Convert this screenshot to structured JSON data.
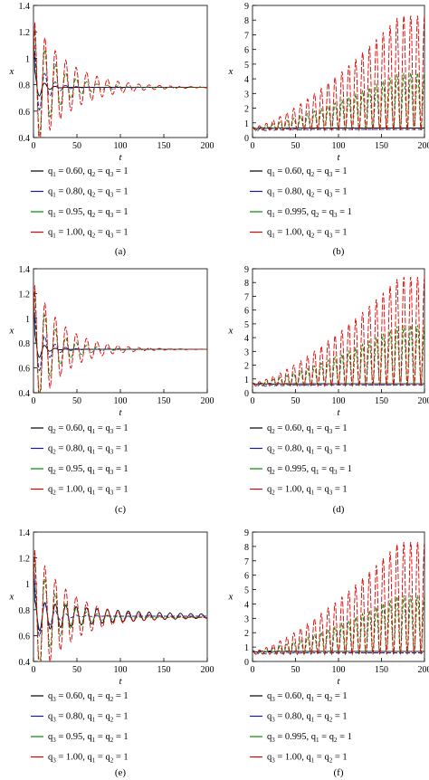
{
  "figure": {
    "panels": [
      {
        "label": "(a)",
        "legend": [
          {
            "text": [
              "q",
              "1",
              " = 0.60, q",
              "2",
              " = q",
              "3",
              " = 1"
            ]
          },
          {
            "text": [
              "q",
              "1",
              " = 0.80, q",
              "2",
              " = q",
              "3",
              " = 1"
            ]
          },
          {
            "text": [
              "q",
              "1",
              " = 0.95, q",
              "2",
              " = q",
              "3",
              " = 1"
            ]
          },
          {
            "text": [
              "q",
              "1",
              " = 1.00, q",
              "2",
              " = q",
              "3",
              " = 1"
            ]
          }
        ]
      },
      {
        "label": "(b)",
        "legend": [
          {
            "text": [
              "q",
              "1",
              " = 0.60, q",
              "2",
              " = q",
              "3",
              " = 1"
            ]
          },
          {
            "text": [
              "q",
              "1",
              " = 0.80, q",
              "2",
              " = q",
              "3",
              " = 1"
            ]
          },
          {
            "text": [
              "q",
              "1",
              " = 0.995, q",
              "2",
              " = q",
              "3",
              " = 1"
            ]
          },
          {
            "text": [
              "q",
              "1",
              " = 1.00, q",
              "2",
              " = q",
              "3",
              " = 1"
            ]
          }
        ]
      },
      {
        "label": "(c)",
        "legend": [
          {
            "text": [
              "q",
              "2",
              " = 0.60, q",
              "1",
              " = q",
              "3",
              " = 1"
            ]
          },
          {
            "text": [
              "q",
              "2",
              " = 0.80, q",
              "1",
              " = q",
              "3",
              " = 1"
            ]
          },
          {
            "text": [
              "q",
              "2",
              " = 0.95, q",
              "1",
              " = q",
              "3",
              " = 1"
            ]
          },
          {
            "text": [
              "q",
              "2",
              " = 1.00, q",
              "1",
              " = q",
              "3",
              " = 1"
            ]
          }
        ]
      },
      {
        "label": "(d)",
        "legend": [
          {
            "text": [
              "q",
              "2",
              " = 0.60, q",
              "1",
              " = q",
              "3",
              " = 1"
            ]
          },
          {
            "text": [
              "q",
              "2",
              " = 0.80, q",
              "1",
              " = q",
              "3",
              " = 1"
            ]
          },
          {
            "text": [
              "q",
              "2",
              " = 0.995, q",
              "1",
              " = q",
              "3",
              " = 1"
            ]
          },
          {
            "text": [
              "q",
              "2",
              " = 1.00, q",
              "1",
              " = q",
              "3",
              " = 1"
            ]
          }
        ]
      },
      {
        "label": "(e)",
        "legend": [
          {
            "text": [
              "q",
              "3",
              " = 0.60, q",
              "1",
              " = q",
              "2",
              " = 1"
            ]
          },
          {
            "text": [
              "q",
              "3",
              " = 0.80, q",
              "1",
              " = q",
              "2",
              " = 1"
            ]
          },
          {
            "text": [
              "q",
              "3",
              " = 0.95, q",
              "1",
              " = q",
              "2",
              " = 1"
            ]
          },
          {
            "text": [
              "q",
              "3",
              " = 1.00, q",
              "1",
              " = q",
              "2",
              " = 1"
            ]
          }
        ]
      },
      {
        "label": "(f)",
        "legend": [
          {
            "text": [
              "q",
              "3",
              " = 0.60, q",
              "1",
              " = q",
              "2",
              " = 1"
            ]
          },
          {
            "text": [
              "q",
              "3",
              " = 0.80, q",
              "1",
              " = q",
              "2",
              " = 1"
            ]
          },
          {
            "text": [
              "q",
              "3",
              " = 0.995, q",
              "1",
              " = q",
              "2",
              " = 1"
            ]
          },
          {
            "text": [
              "q",
              "3",
              " = 1.00, q",
              "1",
              " = q",
              "2",
              " = 1"
            ]
          }
        ]
      }
    ]
  },
  "chart_data": [
    {
      "panel": "(a)",
      "type": "line",
      "xlabel": "t",
      "ylabel": "x",
      "xlim": [
        0,
        200
      ],
      "ylim": [
        0.4,
        1.4
      ],
      "xticks": [
        0,
        50,
        100,
        150,
        200
      ],
      "yticks": [
        0.4,
        0.6,
        0.8,
        1,
        1.2,
        1.4
      ],
      "series": [
        {
          "name": "q1 = 0.60, q2 = q3 = 1",
          "color": "#000000",
          "behavior": "damped",
          "steady": 0.78,
          "start": 1.0,
          "amp": 0.15,
          "decay": 0.12,
          "period": 12
        },
        {
          "name": "q1 = 0.80, q2 = q3 = 1",
          "color": "#1a1aa0",
          "behavior": "damped",
          "steady": 0.78,
          "start": 1.0,
          "amp": 0.3,
          "decay": 0.08,
          "period": 12
        },
        {
          "name": "q1 = 0.95, q2 = q3 = 1",
          "color": "#008a00",
          "behavior": "damped",
          "steady": 0.78,
          "start": 1.0,
          "amp": 0.48,
          "decay": 0.04,
          "period": 12
        },
        {
          "name": "q1 = 1.00, q2 = q3 = 1",
          "color": "#e00000",
          "behavior": "damped",
          "steady": 0.78,
          "start": 1.0,
          "amp": 0.52,
          "decay": 0.025,
          "period": 12
        }
      ]
    },
    {
      "panel": "(b)",
      "type": "line",
      "xlabel": "t",
      "ylabel": "x",
      "xlim": [
        0,
        200
      ],
      "ylim": [
        0,
        9
      ],
      "xticks": [
        0,
        50,
        100,
        150,
        200
      ],
      "yticks": [
        0,
        1,
        2,
        3,
        4,
        5,
        6,
        7,
        8,
        9
      ],
      "series": [
        {
          "name": "q1 = 0.60, q2 = q3 = 1",
          "color": "#000000",
          "behavior": "flat",
          "steady": 0.65,
          "amp": 0.05
        },
        {
          "name": "q1 = 0.80, q2 = q3 = 1",
          "color": "#1a1aa0",
          "behavior": "flat",
          "steady": 0.55,
          "amp": 0.12
        },
        {
          "name": "q1 = 0.995, q2 = q3 = 1",
          "color": "#008a00",
          "behavior": "growing",
          "steady": 0.6,
          "max": 4.3,
          "period": 8
        },
        {
          "name": "q1 = 1.00, q2 = q3 = 1",
          "color": "#e00000",
          "behavior": "growing",
          "steady": 0.6,
          "max": 8.2,
          "period": 8
        }
      ]
    },
    {
      "panel": "(c)",
      "type": "line",
      "xlabel": "t",
      "ylabel": "x",
      "xlim": [
        0,
        200
      ],
      "ylim": [
        0.4,
        1.4
      ],
      "xticks": [
        0,
        50,
        100,
        150,
        200
      ],
      "yticks": [
        0.4,
        0.6,
        0.8,
        1,
        1.2,
        1.4
      ],
      "series": [
        {
          "name": "q2 = 0.60, q1 = q3 = 1",
          "color": "#000000",
          "behavior": "damped",
          "steady": 0.75,
          "start": 1.0,
          "amp": 0.15,
          "decay": 0.12,
          "period": 12
        },
        {
          "name": "q2 = 0.80, q1 = q3 = 1",
          "color": "#1a1aa0",
          "behavior": "damped",
          "steady": 0.75,
          "start": 1.0,
          "amp": 0.3,
          "decay": 0.08,
          "period": 12
        },
        {
          "name": "q2 = 0.95, q1 = q3 = 1",
          "color": "#008a00",
          "behavior": "damped",
          "steady": 0.75,
          "start": 1.0,
          "amp": 0.5,
          "decay": 0.045,
          "period": 12
        },
        {
          "name": "q2 = 1.00, q1 = q3 = 1",
          "color": "#e00000",
          "behavior": "damped",
          "steady": 0.75,
          "start": 1.0,
          "amp": 0.55,
          "decay": 0.03,
          "period": 12
        }
      ]
    },
    {
      "panel": "(d)",
      "type": "line",
      "xlabel": "t",
      "ylabel": "x",
      "xlim": [
        0,
        200
      ],
      "ylim": [
        0,
        9
      ],
      "xticks": [
        0,
        50,
        100,
        150,
        200
      ],
      "yticks": [
        0,
        1,
        2,
        3,
        4,
        5,
        6,
        7,
        8,
        9
      ],
      "series": [
        {
          "name": "q2 = 0.60, q1 = q3 = 1",
          "color": "#000000",
          "behavior": "flat",
          "steady": 0.65,
          "amp": 0.05
        },
        {
          "name": "q2 = 0.80, q1 = q3 = 1",
          "color": "#1a1aa0",
          "behavior": "flat",
          "steady": 0.55,
          "amp": 0.12
        },
        {
          "name": "q2 = 0.995, q1 = q3 = 1",
          "color": "#008a00",
          "behavior": "growing",
          "steady": 0.6,
          "max": 4.8,
          "period": 8
        },
        {
          "name": "q2 = 1.00, q1 = q3 = 1",
          "color": "#e00000",
          "behavior": "growing",
          "steady": 0.6,
          "max": 8.3,
          "period": 8
        }
      ]
    },
    {
      "panel": "(e)",
      "type": "line",
      "xlabel": "t",
      "ylabel": "x",
      "xlim": [
        0,
        200
      ],
      "ylim": [
        0.4,
        1.4
      ],
      "xticks": [
        0,
        50,
        100,
        150,
        200
      ],
      "yticks": [
        0.4,
        0.6,
        0.8,
        1,
        1.2,
        1.4
      ],
      "series": [
        {
          "name": "q3 = 0.60, q1 = q2 = 1",
          "color": "#000000",
          "behavior": "damped",
          "steady": 0.75,
          "start": 1.0,
          "amp": 0.12,
          "decay": 0.01,
          "period": 12
        },
        {
          "name": "q3 = 0.80, q1 = q2 = 1",
          "color": "#1a1aa0",
          "behavior": "damped",
          "steady": 0.75,
          "start": 1.0,
          "amp": 0.25,
          "decay": 0.07,
          "period": 12
        },
        {
          "name": "q3 = 0.95, q1 = q2 = 1",
          "color": "#008a00",
          "behavior": "damped",
          "steady": 0.74,
          "start": 1.0,
          "amp": 0.5,
          "decay": 0.04,
          "period": 12
        },
        {
          "name": "q3 = 1.00, q1 = q2 = 1",
          "color": "#e00000",
          "behavior": "damped",
          "steady": 0.74,
          "start": 1.0,
          "amp": 0.55,
          "decay": 0.025,
          "period": 12
        }
      ]
    },
    {
      "panel": "(f)",
      "type": "line",
      "xlabel": "t",
      "ylabel": "x",
      "xlim": [
        0,
        200
      ],
      "ylim": [
        0,
        9
      ],
      "xticks": [
        0,
        50,
        100,
        150,
        200
      ],
      "yticks": [
        0,
        1,
        2,
        3,
        4,
        5,
        6,
        7,
        8,
        9
      ],
      "series": [
        {
          "name": "q3 = 0.60, q1 = q2 = 1",
          "color": "#000000",
          "behavior": "flat",
          "steady": 0.7,
          "amp": 0.05
        },
        {
          "name": "q3 = 0.80, q1 = q2 = 1",
          "color": "#1a1aa0",
          "behavior": "flat",
          "steady": 0.6,
          "amp": 0.12
        },
        {
          "name": "q3 = 0.995, q1 = q2 = 1",
          "color": "#008a00",
          "behavior": "growing",
          "steady": 0.6,
          "max": 4.5,
          "period": 8
        },
        {
          "name": "q3 = 1.00, q1 = q2 = 1",
          "color": "#e00000",
          "behavior": "growing",
          "steady": 0.6,
          "max": 8.2,
          "period": 8
        }
      ]
    }
  ]
}
